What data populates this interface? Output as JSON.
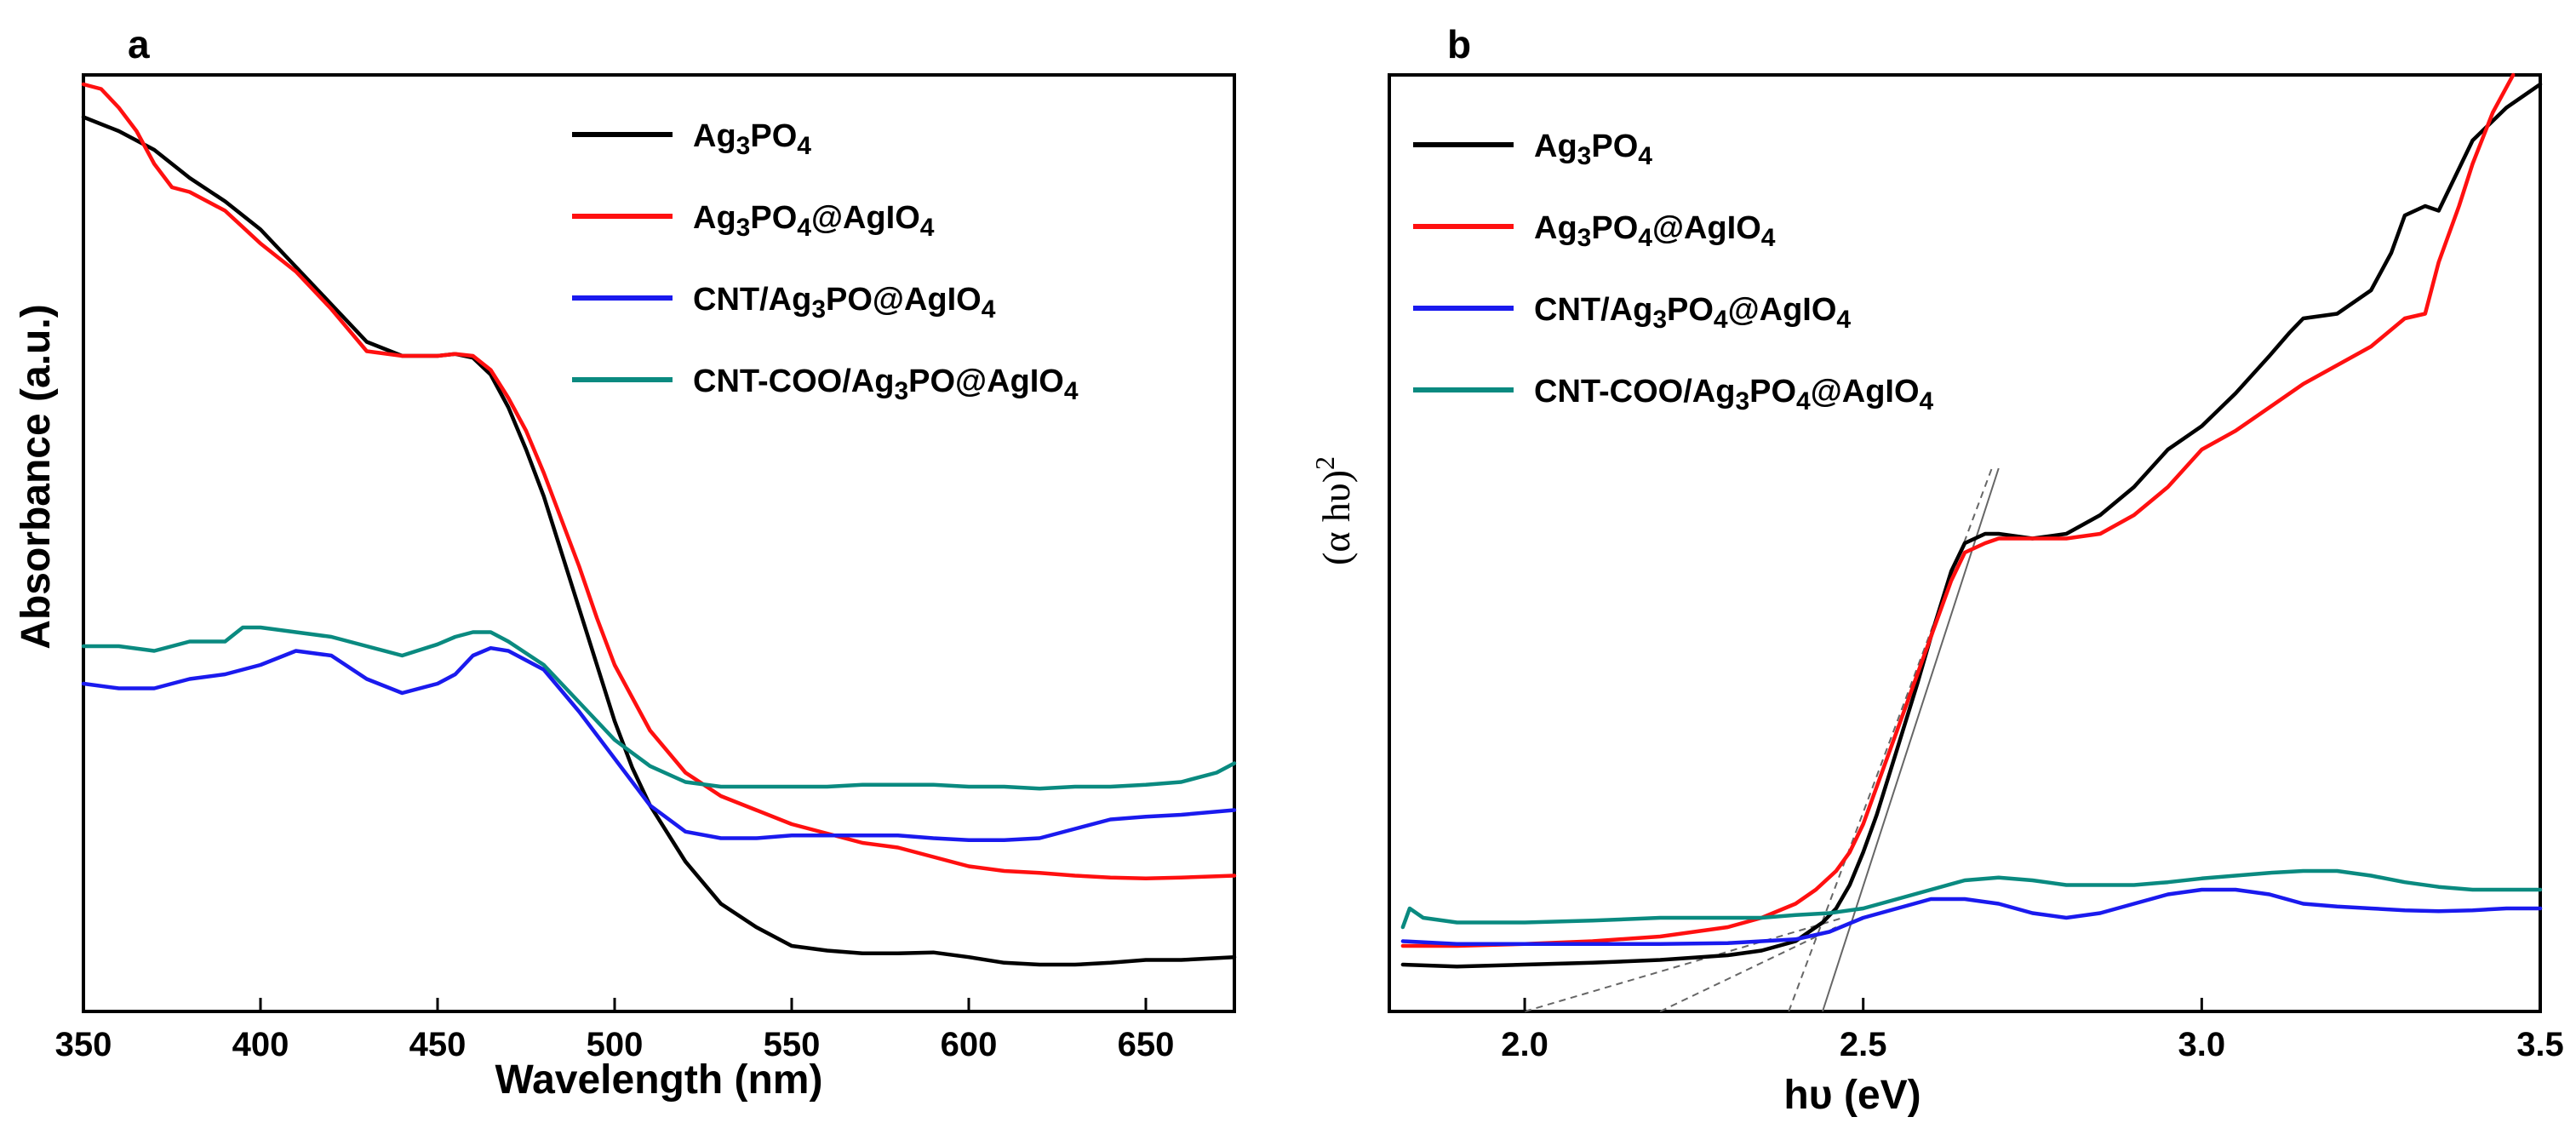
{
  "chart_data": [
    {
      "panel": "a",
      "type": "line",
      "title": "",
      "xlabel": "Wavelength (nm)",
      "ylabel": "Absorbance (a.u.)",
      "xlim": [
        350,
        675
      ],
      "ylim": [
        0,
        1
      ],
      "xticks": [
        350,
        400,
        450,
        500,
        550,
        600,
        650
      ],
      "legend_position": "top-right",
      "grid": false,
      "series": [
        {
          "name": "Ag3PO4",
          "legend_parts": [
            [
              "Ag",
              "n"
            ],
            [
              "3",
              "sub"
            ],
            [
              "PO",
              "n"
            ],
            [
              "4",
              "sub"
            ]
          ],
          "color": "#000000",
          "x": [
            350,
            360,
            370,
            380,
            390,
            400,
            410,
            420,
            430,
            440,
            450,
            455,
            460,
            465,
            470,
            475,
            480,
            485,
            490,
            495,
            500,
            505,
            510,
            520,
            530,
            540,
            550,
            560,
            570,
            580,
            590,
            600,
            610,
            620,
            630,
            640,
            650,
            660,
            675
          ],
          "y": [
            0.955,
            0.94,
            0.92,
            0.89,
            0.865,
            0.835,
            0.795,
            0.755,
            0.715,
            0.7,
            0.7,
            0.702,
            0.698,
            0.68,
            0.645,
            0.6,
            0.55,
            0.49,
            0.43,
            0.37,
            0.31,
            0.26,
            0.22,
            0.16,
            0.115,
            0.09,
            0.07,
            0.065,
            0.062,
            0.062,
            0.063,
            0.058,
            0.052,
            0.05,
            0.05,
            0.052,
            0.055,
            0.055,
            0.058
          ]
        },
        {
          "name": "Ag3PO4@AgIO4",
          "legend_parts": [
            [
              "Ag",
              "n"
            ],
            [
              "3",
              "sub"
            ],
            [
              "PO",
              "n"
            ],
            [
              "4",
              "sub"
            ],
            [
              "@AgIO",
              "n"
            ],
            [
              "4",
              "sub"
            ]
          ],
          "color": "#ff1010",
          "x": [
            350,
            355,
            360,
            365,
            370,
            375,
            380,
            390,
            400,
            410,
            420,
            430,
            440,
            450,
            455,
            460,
            465,
            470,
            475,
            480,
            485,
            490,
            495,
            500,
            510,
            520,
            530,
            540,
            550,
            560,
            570,
            580,
            590,
            600,
            610,
            620,
            630,
            640,
            650,
            660,
            675
          ],
          "y": [
            0.99,
            0.985,
            0.965,
            0.94,
            0.905,
            0.88,
            0.875,
            0.855,
            0.82,
            0.79,
            0.75,
            0.705,
            0.7,
            0.7,
            0.702,
            0.7,
            0.685,
            0.655,
            0.62,
            0.575,
            0.525,
            0.475,
            0.42,
            0.37,
            0.3,
            0.255,
            0.23,
            0.215,
            0.2,
            0.19,
            0.18,
            0.175,
            0.165,
            0.155,
            0.15,
            0.148,
            0.145,
            0.143,
            0.142,
            0.143,
            0.145
          ]
        },
        {
          "name": "CNT/Ag3PO@AgIO4",
          "legend_parts": [
            [
              "CNT/Ag",
              "n"
            ],
            [
              "3",
              "sub"
            ],
            [
              "PO@AgIO",
              "n"
            ],
            [
              "4",
              "sub"
            ]
          ],
          "color": "#1a1aee",
          "x": [
            350,
            360,
            370,
            380,
            390,
            400,
            410,
            420,
            430,
            440,
            450,
            455,
            460,
            465,
            470,
            480,
            490,
            500,
            510,
            520,
            530,
            540,
            550,
            560,
            570,
            580,
            590,
            600,
            610,
            620,
            630,
            640,
            650,
            660,
            675
          ],
          "y": [
            0.35,
            0.345,
            0.345,
            0.355,
            0.36,
            0.37,
            0.385,
            0.38,
            0.355,
            0.34,
            0.35,
            0.36,
            0.38,
            0.388,
            0.385,
            0.365,
            0.32,
            0.27,
            0.22,
            0.192,
            0.185,
            0.185,
            0.188,
            0.188,
            0.188,
            0.188,
            0.185,
            0.183,
            0.183,
            0.185,
            0.195,
            0.205,
            0.208,
            0.21,
            0.215
          ]
        },
        {
          "name": "CNT-COO/Ag3PO@AgIO4",
          "legend_parts": [
            [
              "CNT-COO/Ag",
              "n"
            ],
            [
              "3",
              "sub"
            ],
            [
              "PO@AgIO",
              "n"
            ],
            [
              "4",
              "sub"
            ]
          ],
          "color": "#0a8a80",
          "x": [
            350,
            360,
            370,
            380,
            390,
            395,
            400,
            410,
            420,
            430,
            440,
            450,
            455,
            460,
            465,
            470,
            480,
            490,
            500,
            510,
            520,
            530,
            540,
            550,
            560,
            570,
            580,
            590,
            600,
            610,
            620,
            630,
            640,
            650,
            660,
            670,
            675
          ],
          "y": [
            0.39,
            0.39,
            0.385,
            0.395,
            0.395,
            0.41,
            0.41,
            0.405,
            0.4,
            0.39,
            0.38,
            0.392,
            0.4,
            0.405,
            0.405,
            0.395,
            0.37,
            0.33,
            0.29,
            0.262,
            0.245,
            0.24,
            0.24,
            0.24,
            0.24,
            0.242,
            0.242,
            0.242,
            0.24,
            0.24,
            0.238,
            0.24,
            0.24,
            0.242,
            0.245,
            0.255,
            0.265
          ]
        }
      ]
    },
    {
      "panel": "b",
      "type": "line",
      "title": "",
      "xlabel": "hυ (eV)",
      "ylabel_base": "(α hυ)",
      "ylabel_sup": "2",
      "xlim": [
        1.8,
        3.5
      ],
      "ylim": [
        0,
        1
      ],
      "xticks": [
        2.0,
        2.5,
        3.0,
        3.5
      ],
      "legend_position": "top-left",
      "grid": false,
      "series": [
        {
          "name": "Ag3PO4",
          "legend_parts": [
            [
              "Ag",
              "n"
            ],
            [
              "3",
              "sub"
            ],
            [
              "PO",
              "n"
            ],
            [
              "4",
              "sub"
            ]
          ],
          "color": "#000000",
          "x": [
            1.82,
            1.9,
            2.0,
            2.1,
            2.2,
            2.3,
            2.35,
            2.4,
            2.42,
            2.44,
            2.46,
            2.48,
            2.5,
            2.52,
            2.55,
            2.58,
            2.6,
            2.63,
            2.65,
            2.68,
            2.7,
            2.75,
            2.8,
            2.85,
            2.9,
            2.95,
            3.0,
            3.05,
            3.1,
            3.13,
            3.15,
            3.2,
            3.25,
            3.28,
            3.3,
            3.33,
            3.35,
            3.38,
            3.4,
            3.45,
            3.5
          ],
          "y": [
            0.05,
            0.048,
            0.05,
            0.052,
            0.055,
            0.06,
            0.065,
            0.075,
            0.085,
            0.095,
            0.11,
            0.135,
            0.17,
            0.21,
            0.28,
            0.35,
            0.4,
            0.47,
            0.5,
            0.51,
            0.51,
            0.505,
            0.51,
            0.53,
            0.56,
            0.6,
            0.625,
            0.66,
            0.7,
            0.725,
            0.74,
            0.745,
            0.77,
            0.81,
            0.85,
            0.86,
            0.855,
            0.9,
            0.93,
            0.965,
            0.99
          ]
        },
        {
          "name": "Ag3PO4@AgIO4",
          "legend_parts": [
            [
              "Ag",
              "n"
            ],
            [
              "3",
              "sub"
            ],
            [
              "PO",
              "n"
            ],
            [
              "4",
              "sub"
            ],
            [
              "@AgIO",
              "n"
            ],
            [
              "4",
              "sub"
            ]
          ],
          "color": "#ff1010",
          "x": [
            1.82,
            1.9,
            2.0,
            2.1,
            2.2,
            2.3,
            2.35,
            2.4,
            2.43,
            2.46,
            2.48,
            2.5,
            2.52,
            2.55,
            2.58,
            2.6,
            2.63,
            2.65,
            2.68,
            2.7,
            2.75,
            2.8,
            2.85,
            2.9,
            2.95,
            3.0,
            3.05,
            3.1,
            3.15,
            3.2,
            3.25,
            3.3,
            3.33,
            3.35,
            3.38,
            3.4,
            3.43,
            3.46
          ],
          "y": [
            0.07,
            0.07,
            0.072,
            0.075,
            0.08,
            0.09,
            0.1,
            0.115,
            0.13,
            0.15,
            0.17,
            0.2,
            0.24,
            0.3,
            0.36,
            0.4,
            0.46,
            0.49,
            0.5,
            0.505,
            0.505,
            0.505,
            0.51,
            0.53,
            0.56,
            0.6,
            0.62,
            0.645,
            0.67,
            0.69,
            0.71,
            0.74,
            0.745,
            0.8,
            0.86,
            0.905,
            0.96,
            1.0
          ]
        },
        {
          "name": "CNT/Ag3PO4@AgIO4",
          "legend_parts": [
            [
              "CNT/Ag",
              "n"
            ],
            [
              "3",
              "sub"
            ],
            [
              "PO",
              "n"
            ],
            [
              "4",
              "sub"
            ],
            [
              "@AgIO",
              "n"
            ],
            [
              "4",
              "sub"
            ]
          ],
          "color": "#1a1aee",
          "x": [
            1.82,
            1.9,
            2.0,
            2.1,
            2.2,
            2.3,
            2.4,
            2.45,
            2.5,
            2.55,
            2.6,
            2.65,
            2.7,
            2.75,
            2.8,
            2.85,
            2.9,
            2.95,
            3.0,
            3.05,
            3.1,
            3.15,
            3.2,
            3.25,
            3.3,
            3.35,
            3.4,
            3.45,
            3.5
          ],
          "y": [
            0.075,
            0.072,
            0.072,
            0.072,
            0.072,
            0.073,
            0.077,
            0.085,
            0.1,
            0.11,
            0.12,
            0.12,
            0.115,
            0.105,
            0.1,
            0.105,
            0.115,
            0.125,
            0.13,
            0.13,
            0.125,
            0.115,
            0.112,
            0.11,
            0.108,
            0.107,
            0.108,
            0.11,
            0.11
          ]
        },
        {
          "name": "CNT-COO/Ag3PO4@AgIO4",
          "legend_parts": [
            [
              "CNT-COO/Ag",
              "n"
            ],
            [
              "3",
              "sub"
            ],
            [
              "PO",
              "n"
            ],
            [
              "4",
              "sub"
            ],
            [
              "@AgIO",
              "n"
            ],
            [
              "4",
              "sub"
            ]
          ],
          "color": "#0a8a80",
          "x": [
            1.82,
            1.825,
            1.83,
            1.85,
            1.9,
            2.0,
            2.1,
            2.2,
            2.3,
            2.35,
            2.4,
            2.45,
            2.5,
            2.55,
            2.6,
            2.65,
            2.7,
            2.75,
            2.8,
            2.85,
            2.9,
            2.95,
            3.0,
            3.05,
            3.1,
            3.15,
            3.2,
            3.25,
            3.3,
            3.35,
            3.4,
            3.45,
            3.5
          ],
          "y": [
            0.09,
            0.1,
            0.11,
            0.1,
            0.095,
            0.095,
            0.097,
            0.1,
            0.1,
            0.1,
            0.103,
            0.105,
            0.11,
            0.12,
            0.13,
            0.14,
            0.143,
            0.14,
            0.135,
            0.135,
            0.135,
            0.138,
            0.142,
            0.145,
            0.148,
            0.15,
            0.15,
            0.145,
            0.138,
            0.133,
            0.13,
            0.13,
            0.13
          ]
        }
      ],
      "tangent_lines": [
        {
          "style": "solid",
          "x": [
            2.44,
            2.7
          ],
          "y": [
            0.0,
            0.58
          ]
        },
        {
          "style": "dashed",
          "x": [
            2.39,
            2.69
          ],
          "y": [
            0.0,
            0.58
          ]
        },
        {
          "style": "dashed",
          "x": [
            2.0,
            2.47
          ],
          "y": [
            0.0,
            0.1
          ]
        },
        {
          "style": "dashed",
          "x": [
            2.2,
            2.46
          ],
          "y": [
            0.0,
            0.09
          ]
        }
      ]
    }
  ],
  "figure": {
    "panel_a_letter": "a",
    "panel_b_letter": "b",
    "panel_a_xlabel": "Wavelength (nm)",
    "panel_a_ylabel": "Absorbance (a.u.)",
    "panel_b_xlabel": "hυ (eV)",
    "panel_b_ylabel_base": "(α hυ)",
    "panel_b_ylabel_sup": "2"
  }
}
